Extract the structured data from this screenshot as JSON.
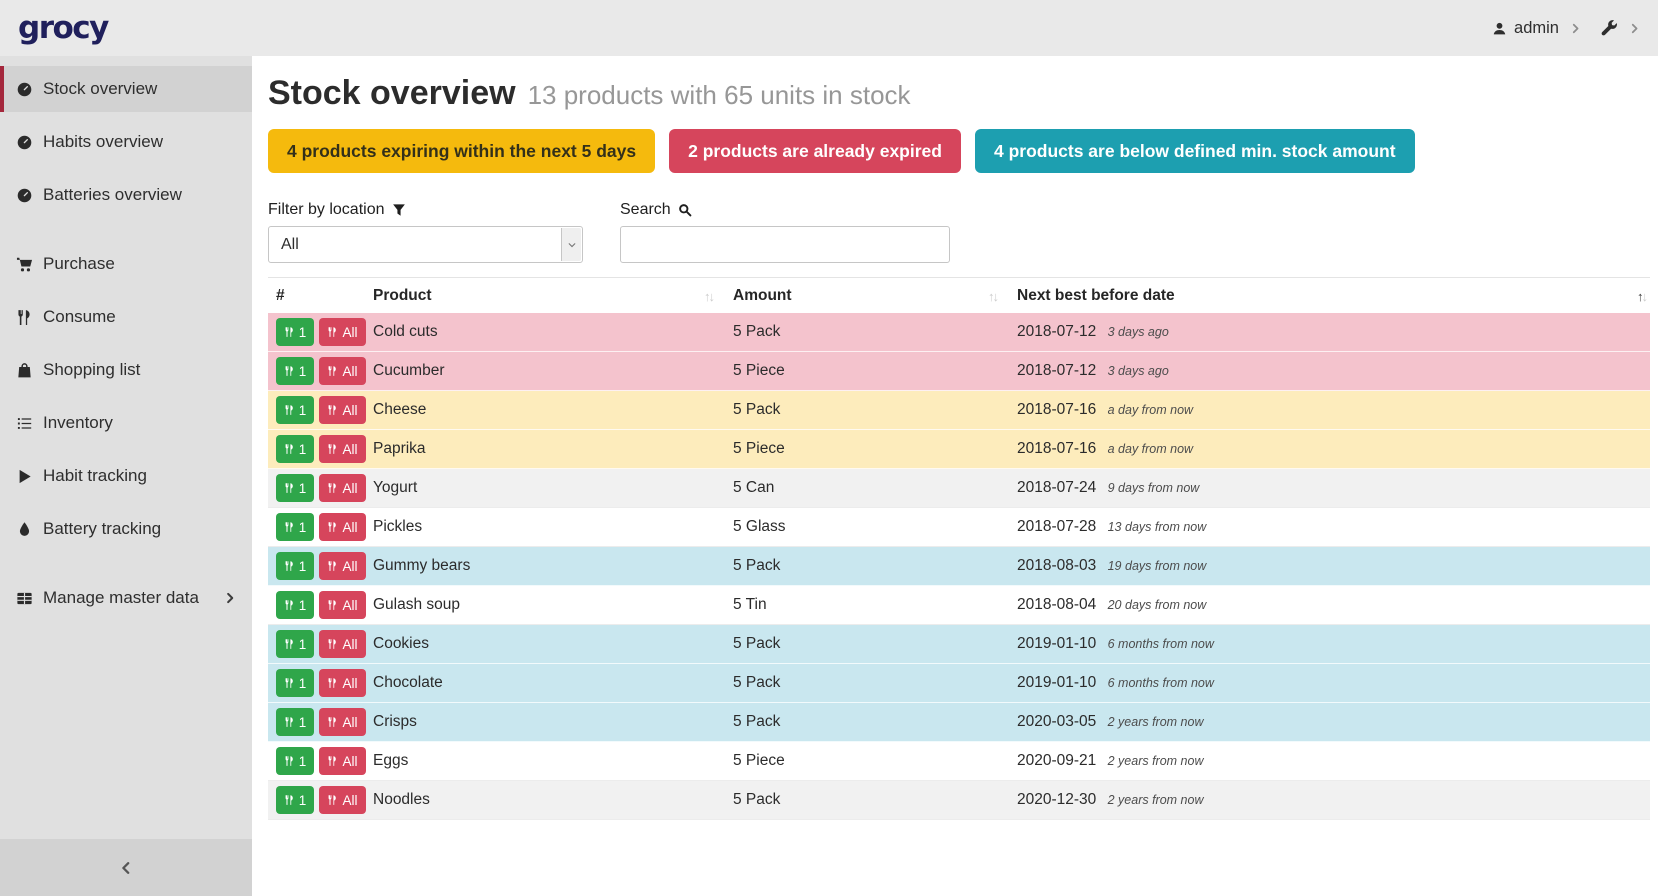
{
  "navbar": {
    "logo": "grocy",
    "user": "admin"
  },
  "sidebar": {
    "items": [
      {
        "name": "sidebar-item-stock-overview",
        "label": "Stock overview",
        "icon": "gauge",
        "cls": "active"
      },
      {
        "name": "sidebar-item-habits-overview",
        "label": "Habits overview",
        "icon": "gauge",
        "cls": ""
      },
      {
        "name": "sidebar-item-batteries-overview",
        "label": "Batteries overview",
        "icon": "gauge",
        "cls": ""
      },
      {
        "name": "sidebar-item-purchase",
        "label": "Purchase",
        "icon": "cart",
        "cls": "gap"
      },
      {
        "name": "sidebar-item-consume",
        "label": "Consume",
        "icon": "utensils",
        "cls": ""
      },
      {
        "name": "sidebar-item-shopping-list",
        "label": "Shopping list",
        "icon": "bag",
        "cls": ""
      },
      {
        "name": "sidebar-item-inventory",
        "label": "Inventory",
        "icon": "list",
        "cls": ""
      },
      {
        "name": "sidebar-item-habit-tracking",
        "label": "Habit tracking",
        "icon": "play",
        "cls": ""
      },
      {
        "name": "sidebar-item-battery-tracking",
        "label": "Battery tracking",
        "icon": "droplet",
        "cls": ""
      },
      {
        "name": "sidebar-item-manage-master-data",
        "label": "Manage master data",
        "icon": "grid",
        "cls": "gap has-submenu"
      }
    ]
  },
  "header": {
    "title": "Stock overview",
    "subtitle": "13 products with 65 units in stock"
  },
  "badges": [
    {
      "label": "4 products expiring within the next 5 days",
      "type": "warning",
      "color": "#f5ba0d"
    },
    {
      "label": "2 products are already expired",
      "type": "danger",
      "color": "#d6455c"
    },
    {
      "label": "4 products are below defined min. stock amount",
      "type": "info",
      "color": "#1d9fb0"
    }
  ],
  "filter": {
    "label": "Filter by location",
    "value": "All"
  },
  "search": {
    "label": "Search",
    "value": ""
  },
  "table": {
    "columns": [
      "#",
      "Product",
      "Amount",
      "Next best before date"
    ],
    "sort": {
      "product": "none",
      "amount": "none",
      "date": "asc"
    },
    "row_buttons": {
      "consume_one": "1",
      "consume_all": "All"
    },
    "rows": [
      {
        "product": "Cold cuts",
        "amount": "5 Pack",
        "date": "2018-07-12",
        "relative": "3 days ago",
        "status": "danger"
      },
      {
        "product": "Cucumber",
        "amount": "5 Piece",
        "date": "2018-07-12",
        "relative": "3 days ago",
        "status": "danger"
      },
      {
        "product": "Cheese",
        "amount": "5 Pack",
        "date": "2018-07-16",
        "relative": "a day from now",
        "status": "warning"
      },
      {
        "product": "Paprika",
        "amount": "5 Piece",
        "date": "2018-07-16",
        "relative": "a day from now",
        "status": "warning"
      },
      {
        "product": "Yogurt",
        "amount": "5 Can",
        "date": "2018-07-24",
        "relative": "9 days from now",
        "status": "stripe"
      },
      {
        "product": "Pickles",
        "amount": "5 Glass",
        "date": "2018-07-28",
        "relative": "13 days from now",
        "status": "none"
      },
      {
        "product": "Gummy bears",
        "amount": "5 Pack",
        "date": "2018-08-03",
        "relative": "19 days from now",
        "status": "info"
      },
      {
        "product": "Gulash soup",
        "amount": "5 Tin",
        "date": "2018-08-04",
        "relative": "20 days from now",
        "status": "none"
      },
      {
        "product": "Cookies",
        "amount": "5 Pack",
        "date": "2019-01-10",
        "relative": "6 months from now",
        "status": "info"
      },
      {
        "product": "Chocolate",
        "amount": "5 Pack",
        "date": "2019-01-10",
        "relative": "6 months from now",
        "status": "info"
      },
      {
        "product": "Crisps",
        "amount": "5 Pack",
        "date": "2020-03-05",
        "relative": "2 years from now",
        "status": "info"
      },
      {
        "product": "Eggs",
        "amount": "5 Piece",
        "date": "2020-09-21",
        "relative": "2 years from now",
        "status": "none"
      },
      {
        "product": "Noodles",
        "amount": "5 Pack",
        "date": "2020-12-30",
        "relative": "2 years from now",
        "status": "stripe"
      }
    ]
  },
  "colors": {
    "navbar_bg": "#e9e9e9",
    "sidebar_bg": "#e0e0e0",
    "sidebar_active_bg": "#d2d2d2",
    "sidebar_active_bar": "#a4273c",
    "logo": "#20205c",
    "success": "#2fa64a",
    "danger": "#d6455c",
    "warning": "#f5ba0d",
    "info": "#1d9fb0",
    "row_danger": "#f4c3cd",
    "row_warning": "#fdecbc",
    "row_info": "#c9e7ef",
    "row_stripe": "#f1f1f1"
  }
}
